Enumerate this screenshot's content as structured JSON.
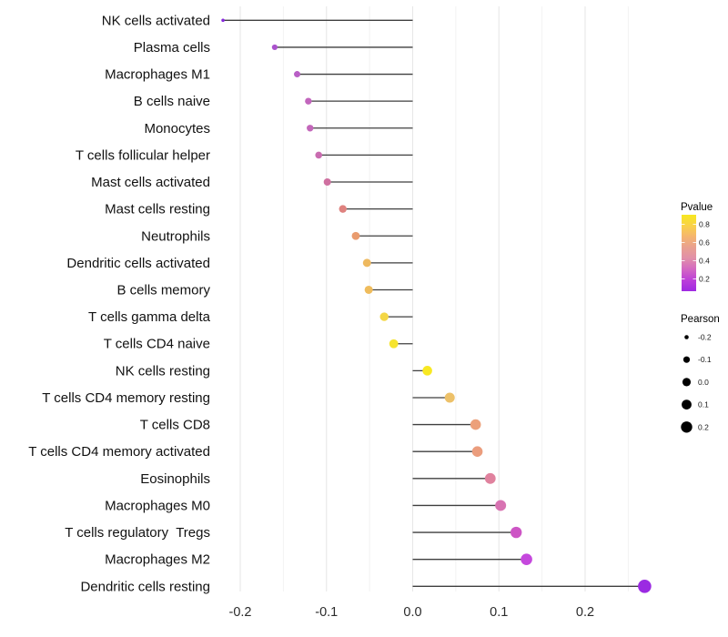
{
  "chart_data": {
    "type": "lollipop",
    "orientation": "horizontal",
    "title": "",
    "xlabel": "",
    "ylabel": "",
    "x_axis": {
      "tick_labels": [
        "-0.2",
        "-0.1",
        "0.0",
        "0.1",
        "0.2"
      ],
      "tick_values": [
        -0.2,
        -0.1,
        0.0,
        0.1,
        0.2
      ],
      "minor_tick_values": [
        -0.15,
        -0.05,
        0.05,
        0.15,
        0.25
      ],
      "xlim": [
        -0.248,
        0.298
      ]
    },
    "grid": {
      "major_color": "#e7e7e7",
      "minor_color": "#f2f2f2",
      "horizontal": false
    },
    "stem_color": "#3f3f3f",
    "background": "#ffffff",
    "points": [
      {
        "label": "NK cells activated",
        "pearson": -0.22,
        "color": "#8728dd",
        "radius": 1.8
      },
      {
        "label": "Plasma cells",
        "pearson": -0.16,
        "color": "#aa52cc",
        "radius": 3.1
      },
      {
        "label": "Macrophages M1",
        "pearson": -0.134,
        "color": "#b95fc6",
        "radius": 3.5
      },
      {
        "label": "B cells naive",
        "pearson": -0.121,
        "color": "#c266bd",
        "radius": 3.7
      },
      {
        "label": "Monocytes",
        "pearson": -0.119,
        "color": "#c367ba",
        "radius": 3.7
      },
      {
        "label": "T cells follicular helper",
        "pearson": -0.109,
        "color": "#c96cb0",
        "radius": 3.8
      },
      {
        "label": "Mast cells activated",
        "pearson": -0.099,
        "color": "#cf70a0",
        "radius": 4.0
      },
      {
        "label": "Mast cells resting",
        "pearson": -0.081,
        "color": "#df827f",
        "radius": 4.2
      },
      {
        "label": "Neutrophils",
        "pearson": -0.066,
        "color": "#e99b6e",
        "radius": 4.4
      },
      {
        "label": "Dendritic cells activated",
        "pearson": -0.053,
        "color": "#eeb95f",
        "radius": 4.5
      },
      {
        "label": "B cells memory",
        "pearson": -0.051,
        "color": "#efbc5c",
        "radius": 4.5
      },
      {
        "label": "T cells gamma delta",
        "pearson": -0.033,
        "color": "#f4d746",
        "radius": 4.7
      },
      {
        "label": "T cells CD4 naive",
        "pearson": -0.022,
        "color": "#f6e42e",
        "radius": 4.9
      },
      {
        "label": "NK cells resting",
        "pearson": 0.017,
        "color": "#f8e822",
        "radius": 5.3
      },
      {
        "label": "T cells CD4 memory resting",
        "pearson": 0.043,
        "color": "#edc169",
        "radius": 5.5
      },
      {
        "label": "T cells CD8",
        "pearson": 0.073,
        "color": "#eca07a",
        "radius": 5.8
      },
      {
        "label": "T cells CD4 memory activated",
        "pearson": 0.075,
        "color": "#eb9d7d",
        "radius": 5.8
      },
      {
        "label": "Eosinophils",
        "pearson": 0.09,
        "color": "#e0829e",
        "radius": 5.9
      },
      {
        "label": "Macrophages M0",
        "pearson": 0.102,
        "color": "#d873b2",
        "radius": 6.0
      },
      {
        "label": "T cells regulatory  Tregs",
        "pearson": 0.12,
        "color": "#cd55c5",
        "radius": 6.2
      },
      {
        "label": "Macrophages M2",
        "pearson": 0.132,
        "color": "#c548dd",
        "radius": 6.3
      },
      {
        "label": "Dendritic cells resting",
        "pearson": 0.269,
        "color": "#9b2ae2",
        "radius": 7.3
      }
    ],
    "legend": {
      "pvalue": {
        "title": "Pvalue",
        "tick_labels": [
          "0.8",
          "0.6",
          "0.4",
          "0.2"
        ],
        "gradient_top_to_bottom": [
          "#f7e81f",
          "#f9d149",
          "#f5b56f",
          "#e9a090",
          "#e18fa9",
          "#d367c2",
          "#bc3fd9",
          "#9f2ae2"
        ]
      },
      "pearson": {
        "title": "Pearson",
        "dot_color": "#000000",
        "entries": [
          {
            "label": "-0.2",
            "radius": 2.3
          },
          {
            "label": "-0.1",
            "radius": 3.6
          },
          {
            "label": "0.0",
            "radius": 4.6
          },
          {
            "label": "0.1",
            "radius": 5.4
          },
          {
            "label": "0.2",
            "radius": 6.2
          }
        ]
      }
    }
  }
}
